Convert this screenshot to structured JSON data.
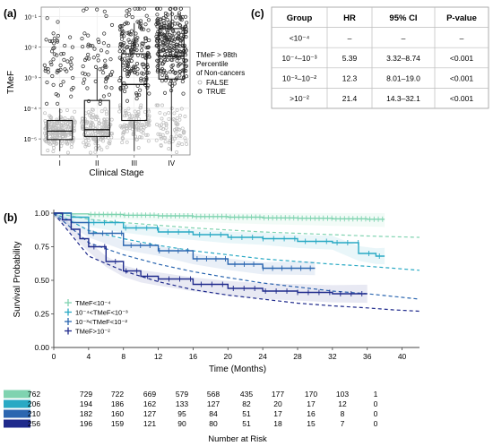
{
  "panels": {
    "a": "(a)",
    "b": "(b)",
    "c": "(c)"
  },
  "colors": {
    "low": "#7fd3b0",
    "mid1": "#29a9c4",
    "mid2": "#2b66b0",
    "high": "#1f2a8c",
    "false_pts": "#bdbdbd",
    "true_pts": "#333333"
  },
  "chart_data": [
    {
      "type": "scatter",
      "panel": "a",
      "xlabel": "Clinical Stage",
      "ylabel": "TMeF",
      "categories": [
        "I",
        "II",
        "III",
        "IV"
      ],
      "y_scale": "log",
      "ylim": [
        3e-06,
        0.2
      ],
      "y_ticks": [
        "10⁻⁵",
        "10⁻⁴",
        "10⁻³",
        "10⁻²",
        "10⁻¹"
      ],
      "legend": {
        "title_lines": [
          "TMeF > 98th",
          "Percentile",
          "of Non-cancers"
        ],
        "items": [
          "FALSE",
          "TRUE"
        ],
        "placement": "right"
      },
      "boxes": [
        {
          "stage": "I",
          "q1": 9.5e-06,
          "median": 1.8e-05,
          "q3": 4e-05,
          "whisker_low": 4e-06,
          "whisker_high": 0.0001
        },
        {
          "stage": "II",
          "q1": 1.2e-05,
          "median": 2e-05,
          "q3": 0.00018,
          "whisker_low": 4e-06,
          "whisker_high": 0.002
        },
        {
          "stage": "III",
          "q1": 4e-05,
          "median": 0.0006,
          "q3": 0.006,
          "whisker_low": 4e-06,
          "whisker_high": 0.06
        },
        {
          "stage": "IV",
          "q1": 0.0009,
          "median": 0.005,
          "q3": 0.04,
          "whisker_low": 4e-06,
          "whisker_high": 0.15
        }
      ]
    },
    {
      "type": "line",
      "panel": "b",
      "xlabel": "Time (Months)",
      "ylabel": "Survival Probability",
      "xlim": [
        0,
        42
      ],
      "ylim": [
        0,
        1.0
      ],
      "x_ticks": [
        0,
        4,
        8,
        12,
        16,
        20,
        24,
        28,
        32,
        36,
        40
      ],
      "y_ticks": [
        "0.00",
        "0.25",
        "0.50",
        "0.75",
        "1.00"
      ],
      "legend_placement": "bottom-left",
      "series": [
        {
          "name": "TMeF<10⁻⁴",
          "key": "low",
          "x": [
            0,
            2,
            4,
            8,
            12,
            16,
            20,
            24,
            28,
            32,
            36,
            38
          ],
          "y": [
            1.0,
            0.995,
            0.99,
            0.985,
            0.98,
            0.975,
            0.97,
            0.965,
            0.962,
            0.958,
            0.955,
            0.955
          ],
          "ref": [
            1.0,
            0.98,
            0.955,
            0.93,
            0.91,
            0.89,
            0.875,
            0.86,
            0.85,
            0.84,
            0.83,
            0.825,
            0.82
          ]
        },
        {
          "name": "10⁻⁴<TMeF<10⁻³",
          "key": "mid1",
          "x": [
            0,
            2,
            4,
            8,
            12,
            16,
            20,
            24,
            28,
            32,
            35,
            37,
            38
          ],
          "y": [
            1.0,
            0.97,
            0.93,
            0.89,
            0.86,
            0.84,
            0.82,
            0.81,
            0.79,
            0.78,
            0.7,
            0.68,
            0.68
          ],
          "ref": [
            1.0,
            0.94,
            0.87,
            0.81,
            0.76,
            0.72,
            0.69,
            0.66,
            0.64,
            0.62,
            0.605,
            0.59,
            0.575
          ]
        },
        {
          "name": "10⁻³<TMeF<10⁻²",
          "key": "mid2",
          "x": [
            0,
            2,
            4,
            8,
            12,
            16,
            20,
            24,
            28,
            30
          ],
          "y": [
            1.0,
            0.93,
            0.85,
            0.76,
            0.72,
            0.66,
            0.62,
            0.59,
            0.59,
            0.59
          ],
          "ref": [
            1.0,
            0.89,
            0.78,
            0.69,
            0.62,
            0.565,
            0.52,
            0.48,
            0.45,
            0.42,
            0.4,
            0.38,
            0.36
          ]
        },
        {
          "name": "TMeF>10⁻²",
          "key": "high",
          "x": [
            0,
            1,
            2,
            3,
            4,
            6,
            8,
            10,
            12,
            16,
            20,
            24,
            28,
            32,
            36
          ],
          "y": [
            1.0,
            0.95,
            0.88,
            0.81,
            0.75,
            0.64,
            0.57,
            0.53,
            0.51,
            0.47,
            0.44,
            0.42,
            0.41,
            0.4,
            0.4
          ],
          "ref": [
            1.0,
            0.84,
            0.68,
            0.57,
            0.49,
            0.43,
            0.39,
            0.36,
            0.33,
            0.31,
            0.295,
            0.28,
            0.27
          ]
        }
      ],
      "ref_x": [
        0,
        2,
        4,
        8,
        12,
        16,
        20,
        24,
        28,
        32,
        36,
        39,
        42
      ]
    }
  ],
  "table": {
    "headers": [
      "Group",
      "HR",
      "95% CI",
      "P-value"
    ],
    "rows": [
      [
        "<10⁻⁴",
        "–",
        "–",
        "–"
      ],
      [
        "10⁻⁴–10⁻³",
        "5.39",
        "3.32–8.74",
        "<0.001"
      ],
      [
        "10⁻³–10⁻²",
        "12.3",
        "8.01–19.0",
        "<0.001"
      ],
      [
        ">10⁻²",
        "21.4",
        "14.3–32.1",
        "<0.001"
      ]
    ]
  },
  "risk_table": {
    "title": "Number at Risk",
    "rows": [
      {
        "key": "low",
        "values": [
          "762",
          "729",
          "722",
          "669",
          "579",
          "568",
          "435",
          "177",
          "170",
          "103",
          "1"
        ]
      },
      {
        "key": "mid1",
        "values": [
          "206",
          "194",
          "186",
          "162",
          "133",
          "127",
          "82",
          "20",
          "17",
          "12",
          "0"
        ]
      },
      {
        "key": "mid2",
        "values": [
          "210",
          "182",
          "160",
          "127",
          "95",
          "84",
          "51",
          "17",
          "16",
          "8",
          "0"
        ]
      },
      {
        "key": "high",
        "values": [
          "256",
          "196",
          "159",
          "121",
          "90",
          "80",
          "51",
          "18",
          "15",
          "7",
          "0"
        ]
      }
    ]
  }
}
